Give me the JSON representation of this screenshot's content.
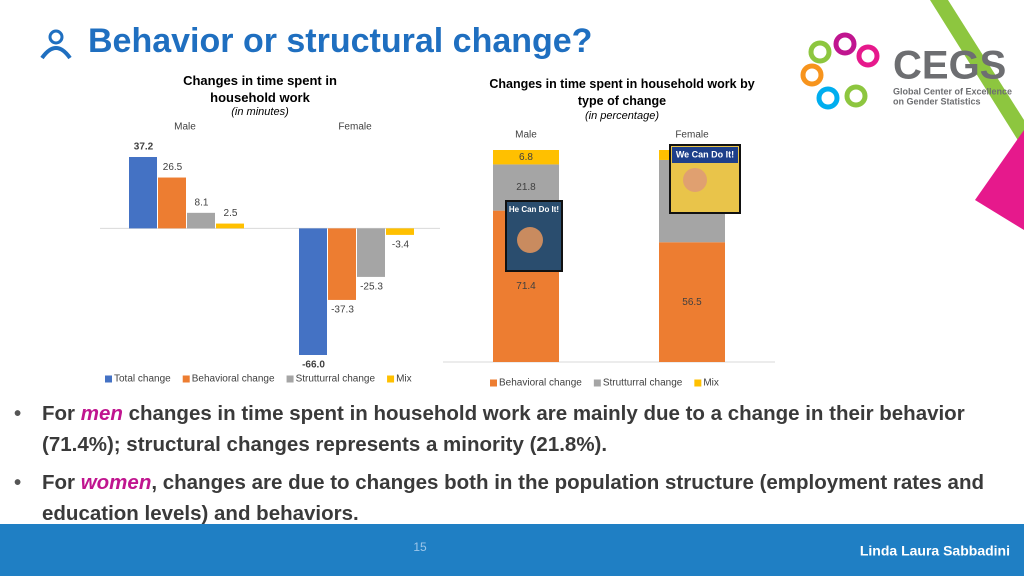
{
  "title": "Behavior or structural change?",
  "logo": {
    "name": "CEGS",
    "line1": "Global Center of Excellence",
    "line2": "on Gender Statistics"
  },
  "images": [
    {
      "caption": "He Can Do It!"
    },
    {
      "caption": "We Can Do It!"
    }
  ],
  "chart_data": [
    {
      "type": "bar",
      "title": "Changes in time spent in household work",
      "subtitle": "(in minutes)",
      "categories": [
        "Male",
        "Female"
      ],
      "series": [
        {
          "name": "Total change",
          "color": "#4472c4",
          "values": [
            37.2,
            -66.0
          ],
          "value_labels": [
            "37.2",
            "-66.0"
          ]
        },
        {
          "name": "Behavioral change",
          "color": "#ed7d31",
          "values": [
            26.5,
            -37.3
          ]
        },
        {
          "name": "Strutturral change",
          "color": "#a5a5a5",
          "values": [
            8.1,
            -25.3
          ]
        },
        {
          "name": "Mix",
          "color": "#ffc000",
          "values": [
            2.5,
            -3.4
          ]
        }
      ]
    },
    {
      "type": "stacked_bar",
      "title": "Changes in time spent in household work by type of change",
      "subtitle": "(in percentage)",
      "categories": [
        "Male",
        "Female"
      ],
      "series": [
        {
          "name": "Behavioral change",
          "color": "#ed7d31",
          "values": [
            71.4,
            56.5
          ]
        },
        {
          "name": "Strutturral change",
          "color": "#a5a5a5",
          "values": [
            21.8,
            38.8
          ],
          "value_labels": [
            "21.8",
            null
          ]
        },
        {
          "name": "Mix",
          "color": "#ffc000",
          "values": [
            6.8,
            4.7
          ],
          "value_labels": [
            "6.8",
            null
          ]
        }
      ]
    }
  ],
  "bullets": [
    {
      "before": "For ",
      "emph": "men",
      "after": " changes in time spent in household work are mainly due to a change in their behavior (71.4%); structural changes represents a minority (21.8%)."
    },
    {
      "before": "For ",
      "emph": "women",
      "after": ", changes are due to changes both in the population structure (employment rates and education levels) and behaviors."
    }
  ],
  "footer": {
    "page": "15",
    "author": "Linda Laura Sabbadini"
  }
}
